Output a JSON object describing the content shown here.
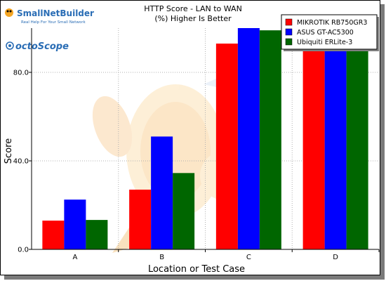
{
  "branding": {
    "logo_main": "SmallNetBuilder",
    "logo_tagline": "Real Help For Your Small Network",
    "logo_secondary": "octoScope"
  },
  "chart_data": {
    "type": "bar",
    "title": "HTTP Score - LAN to WAN",
    "subtitle": "(%) Higher Is Better",
    "xlabel": "Location or Test Case",
    "ylabel": "Score",
    "categories": [
      "A",
      "B",
      "C",
      "D"
    ],
    "ylim": [
      0,
      100
    ],
    "yticks": [
      0,
      40,
      80
    ],
    "ytick_labels": [
      "0.0",
      "40.0",
      "80.0"
    ],
    "grid": true,
    "legend_position": "top-right",
    "series": [
      {
        "name": "MIKROTIK RB750GR3",
        "color": "#ff0000",
        "values": [
          13,
          27,
          93,
          99
        ]
      },
      {
        "name": "ASUS GT-AC5300",
        "color": "#0000ff",
        "values": [
          22.5,
          51,
          100,
          100
        ]
      },
      {
        "name": "Ubiquiti ERLite-3",
        "color": "#006600",
        "values": [
          13.3,
          34.5,
          99,
          100
        ]
      }
    ]
  }
}
